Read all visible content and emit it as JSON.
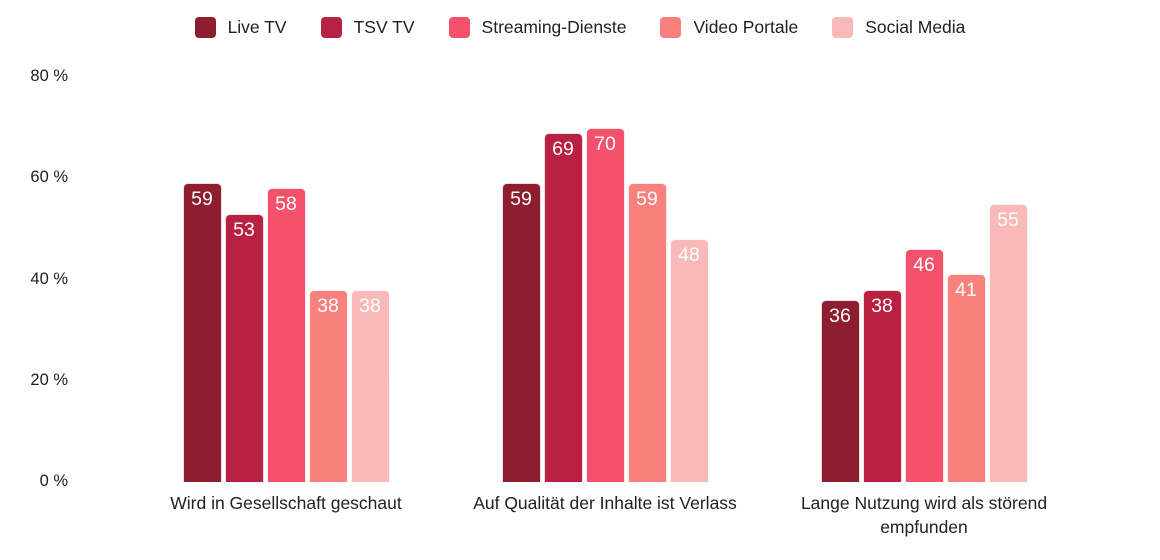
{
  "colors": {
    "background": "#ffffff",
    "text": "#202124",
    "value_label_text": "#ffffff",
    "live_tv": "#8E1D30",
    "tsv_tv": "#B92142",
    "streaming_dienste": "#F4516C",
    "video_portale": "#F9817D",
    "social_media": "#F9B9B9"
  },
  "legend": {
    "items": [
      {
        "label": "Live TV",
        "color": "#8E1D30"
      },
      {
        "label": "TSV TV",
        "color": "#B92142"
      },
      {
        "label": "Streaming-Dienste",
        "color": "#F4516C"
      },
      {
        "label": "Video Portale",
        "color": "#F9817D"
      },
      {
        "label": "Social Media",
        "color": "#F9B9B9"
      }
    ]
  },
  "chart_data": {
    "type": "bar",
    "title": "",
    "categories": [
      "Wird in Gesellschaft geschaut",
      "Auf Qualität der Inhalte ist Verlass",
      "Lange Nutzung wird als störend empfunden"
    ],
    "series": [
      {
        "name": "Live TV",
        "color": "#8E1D30",
        "values": [
          59,
          59,
          36
        ]
      },
      {
        "name": "TSV TV",
        "color": "#B92142",
        "values": [
          53,
          69,
          38
        ]
      },
      {
        "name": "Streaming-Dienste",
        "color": "#F4516C",
        "values": [
          58,
          70,
          46
        ]
      },
      {
        "name": "Video Portale",
        "color": "#F9817D",
        "values": [
          38,
          59,
          41
        ]
      },
      {
        "name": "Social Media",
        "color": "#F9B9B9",
        "values": [
          38,
          48,
          55
        ]
      }
    ],
    "unit": "%",
    "ylim": [
      0,
      80
    ],
    "yticks": [
      {
        "value": 0,
        "label": "0 %"
      },
      {
        "value": 20,
        "label": "20 %"
      },
      {
        "value": 40,
        "label": "40 %"
      },
      {
        "value": 60,
        "label": "60 %"
      },
      {
        "value": 80,
        "label": "80 %"
      }
    ],
    "grid": false,
    "legend_position": "top-center",
    "value_labels": "inside-top-white"
  }
}
